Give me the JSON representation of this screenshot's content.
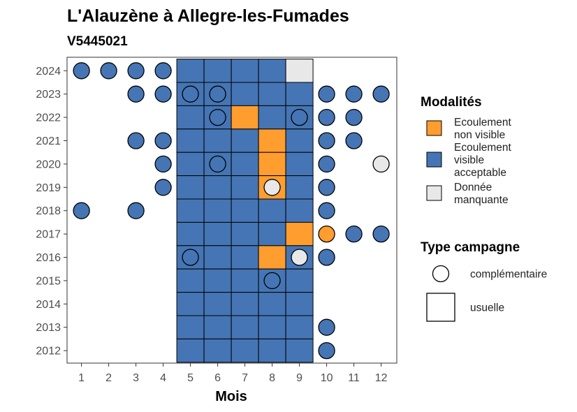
{
  "chart_data": {
    "type": "heatmap",
    "title": "L'Alauzène à Allegre-les-Fumades",
    "subtitle": "V5445021",
    "xlabel": "Mois",
    "ylabel": "",
    "x": [
      1,
      2,
      3,
      4,
      5,
      6,
      7,
      8,
      9,
      10,
      11,
      12
    ],
    "y": [
      2012,
      2013,
      2014,
      2015,
      2016,
      2017,
      2018,
      2019,
      2020,
      2021,
      2022,
      2023,
      2024
    ],
    "xlim": [
      1,
      12
    ],
    "ylim": [
      2012,
      2024
    ],
    "grid": false,
    "colors": {
      "ecoulement_non_visible": "#FF9D2E",
      "ecoulement_visible_acceptable": "#4575B4",
      "donnee_manquante": "#E8E8E8"
    },
    "legend": {
      "placement": "right",
      "modalites_title": "Modalités",
      "modalites": [
        {
          "key": "ecoulement_non_visible",
          "lines": [
            "Ecoulement",
            "non visible"
          ]
        },
        {
          "key": "ecoulement_visible_acceptable",
          "lines": [
            "Ecoulement",
            "visible",
            "acceptable"
          ]
        },
        {
          "key": "donnee_manquante",
          "lines": [
            "Donnée",
            "manquante"
          ]
        }
      ],
      "campagne_title": "Type campagne",
      "campagnes": [
        {
          "key": "complementaire",
          "label": "complémentaire",
          "shape": "circle"
        },
        {
          "key": "usuelle",
          "label": "usuelle",
          "shape": "square"
        }
      ]
    },
    "usuelle": [
      {
        "year": 2024,
        "months": [
          "V",
          "V",
          "V",
          "V",
          "M"
        ]
      },
      {
        "year": 2023,
        "months": [
          "V",
          "V",
          "V",
          "V",
          "V"
        ]
      },
      {
        "year": 2022,
        "months": [
          "V",
          "V",
          "N",
          "V",
          "V"
        ]
      },
      {
        "year": 2021,
        "months": [
          "V",
          "V",
          "V",
          "N",
          "V"
        ]
      },
      {
        "year": 2020,
        "months": [
          "V",
          "V",
          "V",
          "N",
          "V"
        ]
      },
      {
        "year": 2019,
        "months": [
          "V",
          "V",
          "V",
          "N",
          "V"
        ]
      },
      {
        "year": 2018,
        "months": [
          "V",
          "V",
          "V",
          "V",
          "V"
        ]
      },
      {
        "year": 2017,
        "months": [
          "V",
          "V",
          "V",
          "V",
          "N"
        ]
      },
      {
        "year": 2016,
        "months": [
          "V",
          "V",
          "V",
          "N",
          "V"
        ]
      },
      {
        "year": 2015,
        "months": [
          "V",
          "V",
          "V",
          "V",
          "V"
        ]
      },
      {
        "year": 2014,
        "months": [
          "V",
          "V",
          "V",
          "V",
          "V"
        ]
      },
      {
        "year": 2013,
        "months": [
          "V",
          "V",
          "V",
          "V",
          "V"
        ]
      },
      {
        "year": 2012,
        "months": [
          "V",
          "V",
          "V",
          "V",
          "V"
        ]
      }
    ],
    "usuelle_first_month": 5,
    "complementaire": [
      {
        "year": 2024,
        "month": 1,
        "v": "V"
      },
      {
        "year": 2024,
        "month": 2,
        "v": "V"
      },
      {
        "year": 2024,
        "month": 3,
        "v": "V"
      },
      {
        "year": 2024,
        "month": 4,
        "v": "V"
      },
      {
        "year": 2023,
        "month": 3,
        "v": "V"
      },
      {
        "year": 2023,
        "month": 4,
        "v": "V"
      },
      {
        "year": 2023,
        "month": 5,
        "v": "V"
      },
      {
        "year": 2023,
        "month": 6,
        "v": "V"
      },
      {
        "year": 2023,
        "month": 10,
        "v": "V"
      },
      {
        "year": 2023,
        "month": 11,
        "v": "V"
      },
      {
        "year": 2023,
        "month": 12,
        "v": "V"
      },
      {
        "year": 2022,
        "month": 6,
        "v": "V"
      },
      {
        "year": 2022,
        "month": 9,
        "v": "V"
      },
      {
        "year": 2022,
        "month": 10,
        "v": "V"
      },
      {
        "year": 2022,
        "month": 11,
        "v": "V"
      },
      {
        "year": 2021,
        "month": 3,
        "v": "V"
      },
      {
        "year": 2021,
        "month": 4,
        "v": "V"
      },
      {
        "year": 2021,
        "month": 10,
        "v": "V"
      },
      {
        "year": 2021,
        "month": 11,
        "v": "V"
      },
      {
        "year": 2020,
        "month": 4,
        "v": "V"
      },
      {
        "year": 2020,
        "month": 6,
        "v": "V"
      },
      {
        "year": 2020,
        "month": 10,
        "v": "V"
      },
      {
        "year": 2020,
        "month": 12,
        "v": "M"
      },
      {
        "year": 2019,
        "month": 4,
        "v": "V"
      },
      {
        "year": 2019,
        "month": 8,
        "v": "M"
      },
      {
        "year": 2019,
        "month": 10,
        "v": "V"
      },
      {
        "year": 2018,
        "month": 1,
        "v": "V"
      },
      {
        "year": 2018,
        "month": 3,
        "v": "V"
      },
      {
        "year": 2018,
        "month": 10,
        "v": "V"
      },
      {
        "year": 2017,
        "month": 10,
        "v": "N"
      },
      {
        "year": 2017,
        "month": 11,
        "v": "V"
      },
      {
        "year": 2017,
        "month": 12,
        "v": "V"
      },
      {
        "year": 2016,
        "month": 5,
        "v": "V"
      },
      {
        "year": 2016,
        "month": 9,
        "v": "M"
      },
      {
        "year": 2016,
        "month": 10,
        "v": "V"
      },
      {
        "year": 2015,
        "month": 8,
        "v": "V"
      },
      {
        "year": 2013,
        "month": 10,
        "v": "V"
      },
      {
        "year": 2012,
        "month": 10,
        "v": "V"
      }
    ]
  }
}
